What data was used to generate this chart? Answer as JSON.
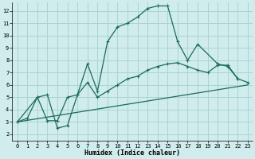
{
  "background_color": "#d0ecec",
  "grid_color": "#aad4d4",
  "line_color": "#1a6b5a",
  "marker_color": "#1a6b5a",
  "xlabel": "Humidex (Indice chaleur)",
  "xlim": [
    -0.5,
    23.5
  ],
  "ylim": [
    1.5,
    12.7
  ],
  "xticks": [
    0,
    1,
    2,
    3,
    4,
    5,
    6,
    7,
    8,
    9,
    10,
    11,
    12,
    13,
    14,
    15,
    16,
    17,
    18,
    19,
    20,
    21,
    22,
    23
  ],
  "yticks": [
    2,
    3,
    4,
    5,
    6,
    7,
    8,
    9,
    10,
    11,
    12
  ],
  "curve1_x": [
    0,
    1,
    2,
    3,
    4,
    5,
    6,
    7,
    8,
    9,
    10,
    11,
    12,
    13,
    14,
    15,
    16,
    17,
    18,
    20,
    21,
    22
  ],
  "curve1_y": [
    3.0,
    3.3,
    5.0,
    3.1,
    3.1,
    5.0,
    5.2,
    7.7,
    5.5,
    9.5,
    10.7,
    11.0,
    11.5,
    12.2,
    12.4,
    12.4,
    9.5,
    8.0,
    9.3,
    7.7,
    7.5,
    6.5
  ],
  "curve2_x": [
    0,
    2,
    3,
    4,
    5,
    6,
    7,
    8,
    9,
    10,
    11,
    12,
    13,
    14,
    15,
    16,
    17,
    18,
    19,
    20,
    21,
    22,
    23
  ],
  "curve2_y": [
    3.0,
    5.0,
    5.2,
    2.5,
    2.7,
    5.2,
    6.2,
    5.0,
    5.5,
    6.0,
    6.5,
    6.7,
    7.2,
    7.5,
    7.7,
    7.8,
    7.5,
    7.2,
    7.0,
    7.6,
    7.6,
    6.5,
    6.2
  ],
  "curve3_x": [
    0,
    23
  ],
  "curve3_y": [
    3.0,
    6.0
  ]
}
